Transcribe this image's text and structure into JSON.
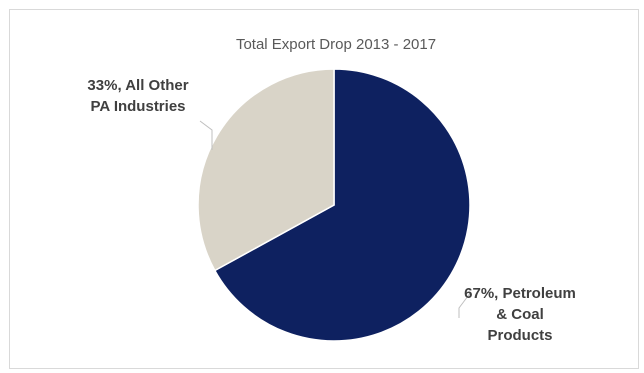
{
  "chart_data": {
    "type": "pie",
    "title": "Total Export Drop 2013 - 2017",
    "slices": [
      {
        "label_lines": [
          "67%, Petroleum",
          "& Coal",
          "Products"
        ],
        "value": 67,
        "color": "#0e2160"
      },
      {
        "label_lines": [
          "33%, All Other",
          "PA Industries"
        ],
        "value": 33,
        "color": "#d9d4c8"
      }
    ],
    "legend": "none"
  }
}
